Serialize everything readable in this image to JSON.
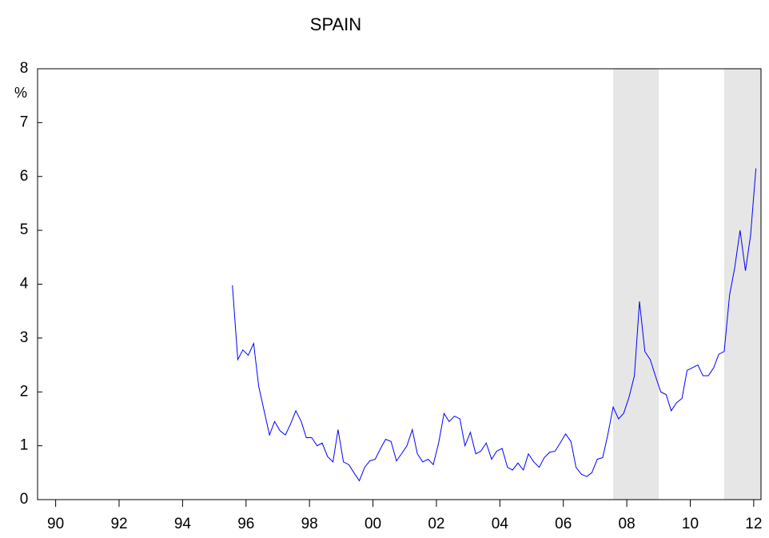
{
  "chart_data": {
    "type": "line",
    "title": "SPAIN",
    "y_label": "%",
    "x": [
      1996.0,
      1996.17,
      1996.33,
      1996.5,
      1996.67,
      1996.83,
      1997.0,
      1997.17,
      1997.33,
      1997.5,
      1997.67,
      1997.83,
      1998.0,
      1998.17,
      1998.33,
      1998.5,
      1998.67,
      1998.83,
      1999.0,
      1999.17,
      1999.33,
      1999.5,
      1999.67,
      1999.83,
      2000.0,
      2000.17,
      2000.33,
      2000.5,
      2000.67,
      2000.83,
      2001.0,
      2001.17,
      2001.33,
      2001.5,
      2001.67,
      2001.83,
      2002.0,
      2002.17,
      2002.33,
      2002.5,
      2002.67,
      2002.83,
      2003.0,
      2003.17,
      2003.33,
      2003.5,
      2003.67,
      2003.83,
      2004.0,
      2004.17,
      2004.33,
      2004.5,
      2004.67,
      2004.83,
      2005.0,
      2005.17,
      2005.33,
      2005.5,
      2005.67,
      2005.83,
      2006.0,
      2006.17,
      2006.33,
      2006.5,
      2006.67,
      2006.83,
      2007.0,
      2007.17,
      2007.33,
      2007.5,
      2007.67,
      2007.83,
      2008.0,
      2008.17,
      2008.33,
      2008.5,
      2008.67,
      2008.83,
      2009.0,
      2009.17,
      2009.33,
      2009.5,
      2009.67,
      2009.83,
      2010.0,
      2010.17,
      2010.33,
      2010.5,
      2010.67,
      2010.83,
      2011.0,
      2011.17,
      2011.33,
      2011.5,
      2011.67,
      2011.83,
      2012.0,
      2012.17,
      2012.33,
      2012.5
    ],
    "series": [
      {
        "name": "Spain",
        "color": "#0000ff",
        "values": [
          3.98,
          2.6,
          2.78,
          2.68,
          2.9,
          2.1,
          1.65,
          1.2,
          1.45,
          1.28,
          1.2,
          1.4,
          1.65,
          1.45,
          1.15,
          1.15,
          1.0,
          1.05,
          0.8,
          0.7,
          1.3,
          0.7,
          0.65,
          0.5,
          0.35,
          0.6,
          0.72,
          0.75,
          0.95,
          1.12,
          1.08,
          0.72,
          0.85,
          1.0,
          1.3,
          0.85,
          0.7,
          0.75,
          0.65,
          1.05,
          1.6,
          1.45,
          1.55,
          1.5,
          1.0,
          1.25,
          0.85,
          0.9,
          1.05,
          0.75,
          0.9,
          0.95,
          0.6,
          0.55,
          0.68,
          0.55,
          0.85,
          0.7,
          0.6,
          0.78,
          0.88,
          0.9,
          1.05,
          1.22,
          1.08,
          0.6,
          0.47,
          0.43,
          0.5,
          0.75,
          0.78,
          1.2,
          1.72,
          1.5,
          1.6,
          1.9,
          2.3,
          3.68,
          2.75,
          2.6,
          2.3,
          2.0,
          1.95,
          1.65,
          1.8,
          1.88,
          2.4,
          2.45,
          2.5,
          2.3,
          2.3,
          2.45,
          2.7,
          2.75,
          3.8,
          4.3,
          5.0,
          4.25,
          4.9,
          6.15
        ]
      }
    ],
    "shaded": [
      [
        2008.0,
        2009.44
      ],
      [
        2011.5,
        2012.66
      ]
    ],
    "shade_color": "#e6e6e6",
    "xlim": [
      1989.86,
      2012.66
    ],
    "xticks": [
      {
        "value": 1990.43,
        "label": "90"
      },
      {
        "value": 1992.43,
        "label": "92"
      },
      {
        "value": 1994.43,
        "label": "94"
      },
      {
        "value": 1996.43,
        "label": "96"
      },
      {
        "value": 1998.43,
        "label": "98"
      },
      {
        "value": 2000.43,
        "label": "00"
      },
      {
        "value": 2002.43,
        "label": "02"
      },
      {
        "value": 2004.43,
        "label": "04"
      },
      {
        "value": 2006.43,
        "label": "06"
      },
      {
        "value": 2008.43,
        "label": "08"
      },
      {
        "value": 2010.43,
        "label": "10"
      },
      {
        "value": 2012.43,
        "label": "12"
      }
    ],
    "ylim": [
      0,
      8
    ],
    "yticks": [
      0,
      1,
      2,
      3,
      4,
      5,
      6,
      7,
      8
    ],
    "grid": false
  }
}
